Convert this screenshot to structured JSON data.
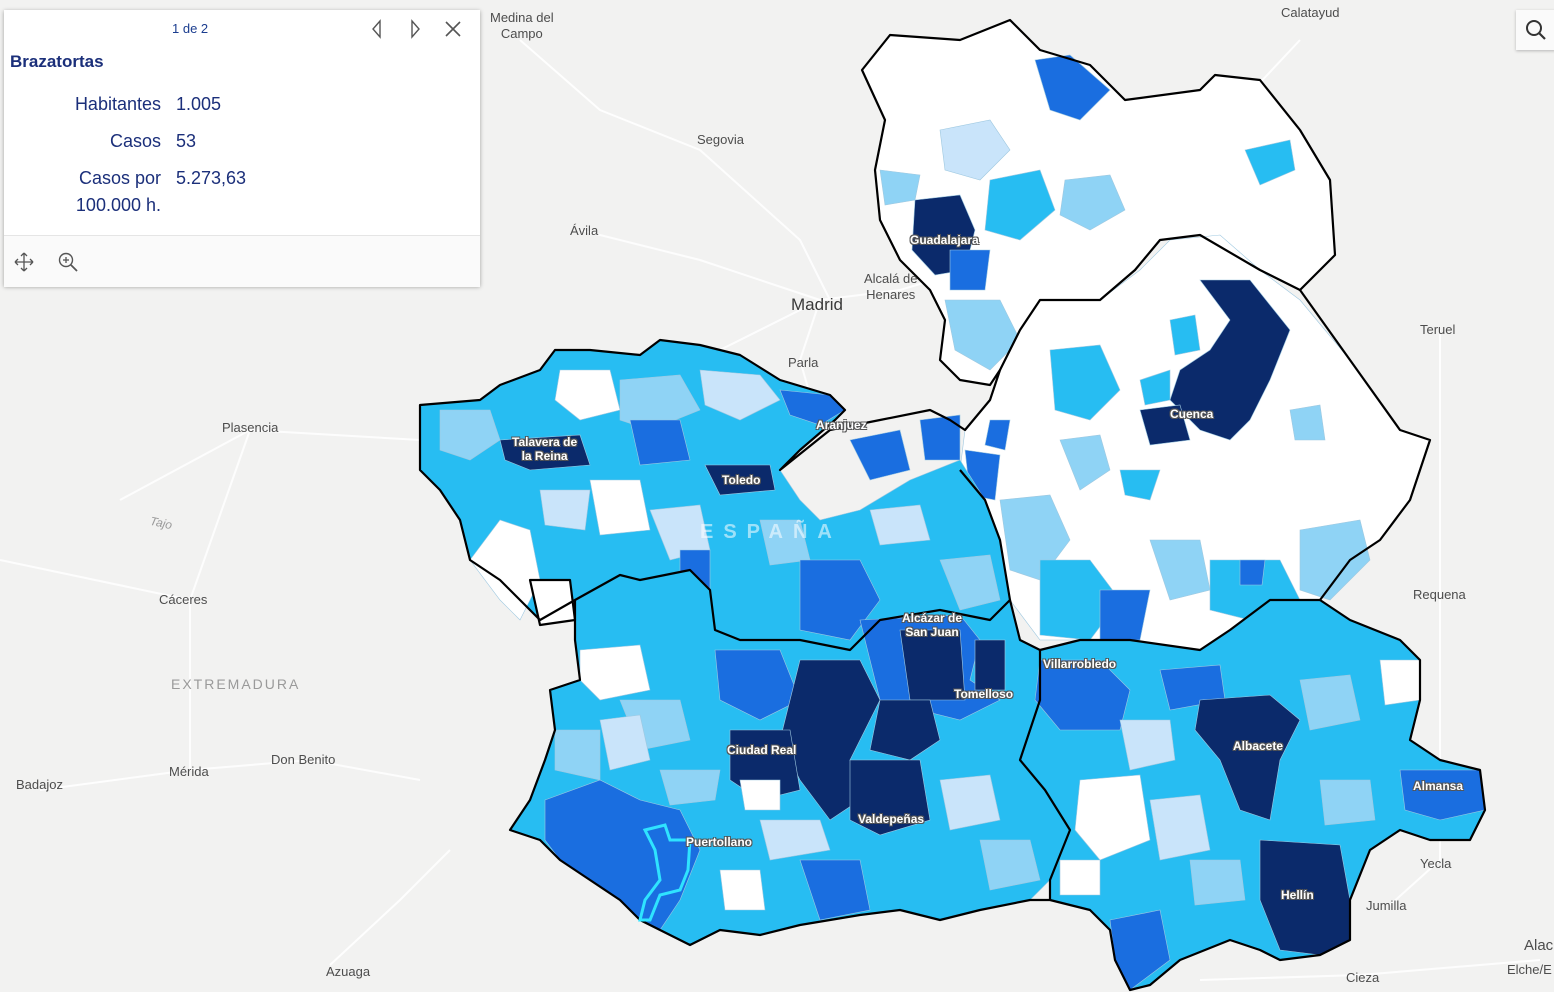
{
  "popup": {
    "pager": "1 de 2",
    "title": "Brazatortas",
    "fields": [
      {
        "label": "Habitantes",
        "value": "1.005"
      },
      {
        "label": "Casos",
        "value": "53"
      },
      {
        "label": "Casos por\n100.000 h.",
        "value": "5.273,63"
      }
    ],
    "prev_icon": "chevron-left-icon",
    "next_icon": "chevron-right-icon",
    "close_icon": "close-icon",
    "pan_icon": "pan-icon",
    "zoom_icon": "zoom-in-icon"
  },
  "search": {
    "icon": "search-icon"
  },
  "colors": {
    "class1": "#c9e4fa",
    "class2": "#8fd3f5",
    "class3": "#27bdf2",
    "class4": "#1a6ee0",
    "class5": "#0b2a6b",
    "empty": "#ffffff",
    "outline": "#000000"
  },
  "places": {
    "medina": "Medina del\nCampo",
    "calatayud": "Calatayud",
    "segovia": "Segovia",
    "avila": "Ávila",
    "alcala": "Alcalá de\nHenares",
    "madrid": "Madrid",
    "parla": "Parla",
    "teruel": "Teruel",
    "plasencia": "Plasencia",
    "tajo": "Tajo",
    "caceres": "Cáceres",
    "extremadura": "EXTREMADURA",
    "requena": "Requena",
    "badajoz": "Badajoz",
    "merida": "Mérida",
    "donbenito": "Don Benito",
    "yecla": "Yecla",
    "jumilla": "Jumilla",
    "azuaga": "Azuaga",
    "cieza": "Cieza",
    "alac": "Alac",
    "elche": "Elche/E",
    "espana": "ESPAÑA"
  },
  "map_labels": {
    "guadalajara": "Guadalajara",
    "cuenca": "Cuenca",
    "aranjuez": "Aranjuez",
    "talavera": "Talavera de\nla Reina",
    "toledo": "Toledo",
    "alcazar": "Alcázar de\nSan Juan",
    "villarrobledo": "Villarrobledo",
    "tomelloso": "Tomelloso",
    "ciudadreal": "Ciudad Real",
    "albacete": "Albacete",
    "almansa": "Almansa",
    "valdepenas": "Valdepeñas",
    "puertollano": "Puertollano",
    "hellin": "Hellín"
  }
}
